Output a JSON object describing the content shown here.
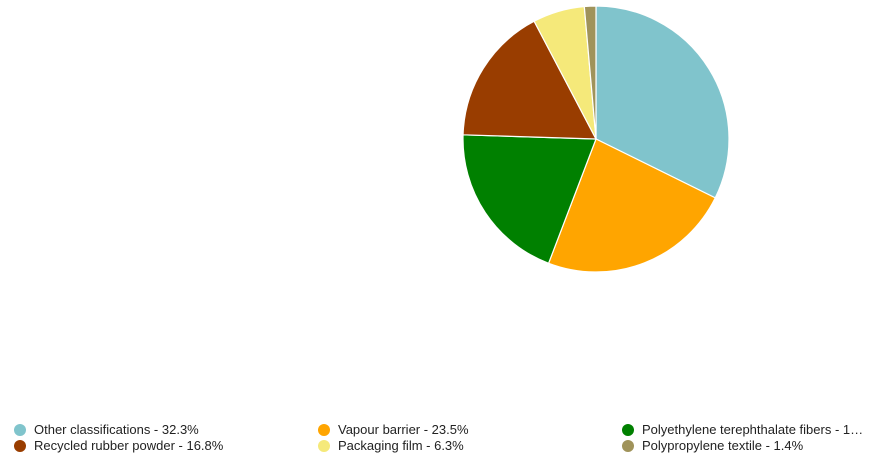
{
  "chart_data": {
    "type": "pie",
    "slices": [
      {
        "label": "Other classifications - 32.3%",
        "name": "Other classifications",
        "value": 32.3,
        "color": "#80c4cc"
      },
      {
        "label": "Vapour barrier - 23.5%",
        "name": "Vapour barrier",
        "value": 23.5,
        "color": "#ffa500"
      },
      {
        "label": "Polyethylene terephthalate fibers - 1…",
        "name": "Polyethylene terephthalate fibers",
        "value": 19.7,
        "color": "#008000"
      },
      {
        "label": "Recycled rubber powder - 16.8%",
        "name": "Recycled rubber powder",
        "value": 16.8,
        "color": "#993d00"
      },
      {
        "label": "Packaging film - 6.3%",
        "name": "Packaging film",
        "value": 6.3,
        "color": "#f5e97a"
      },
      {
        "label": "Polypropylene textile - 1.4%",
        "name": "Polypropylene textile",
        "value": 1.4,
        "color": "#a0935a"
      }
    ],
    "legend_position": "bottom",
    "start_angle": "top",
    "direction": "clockwise"
  }
}
